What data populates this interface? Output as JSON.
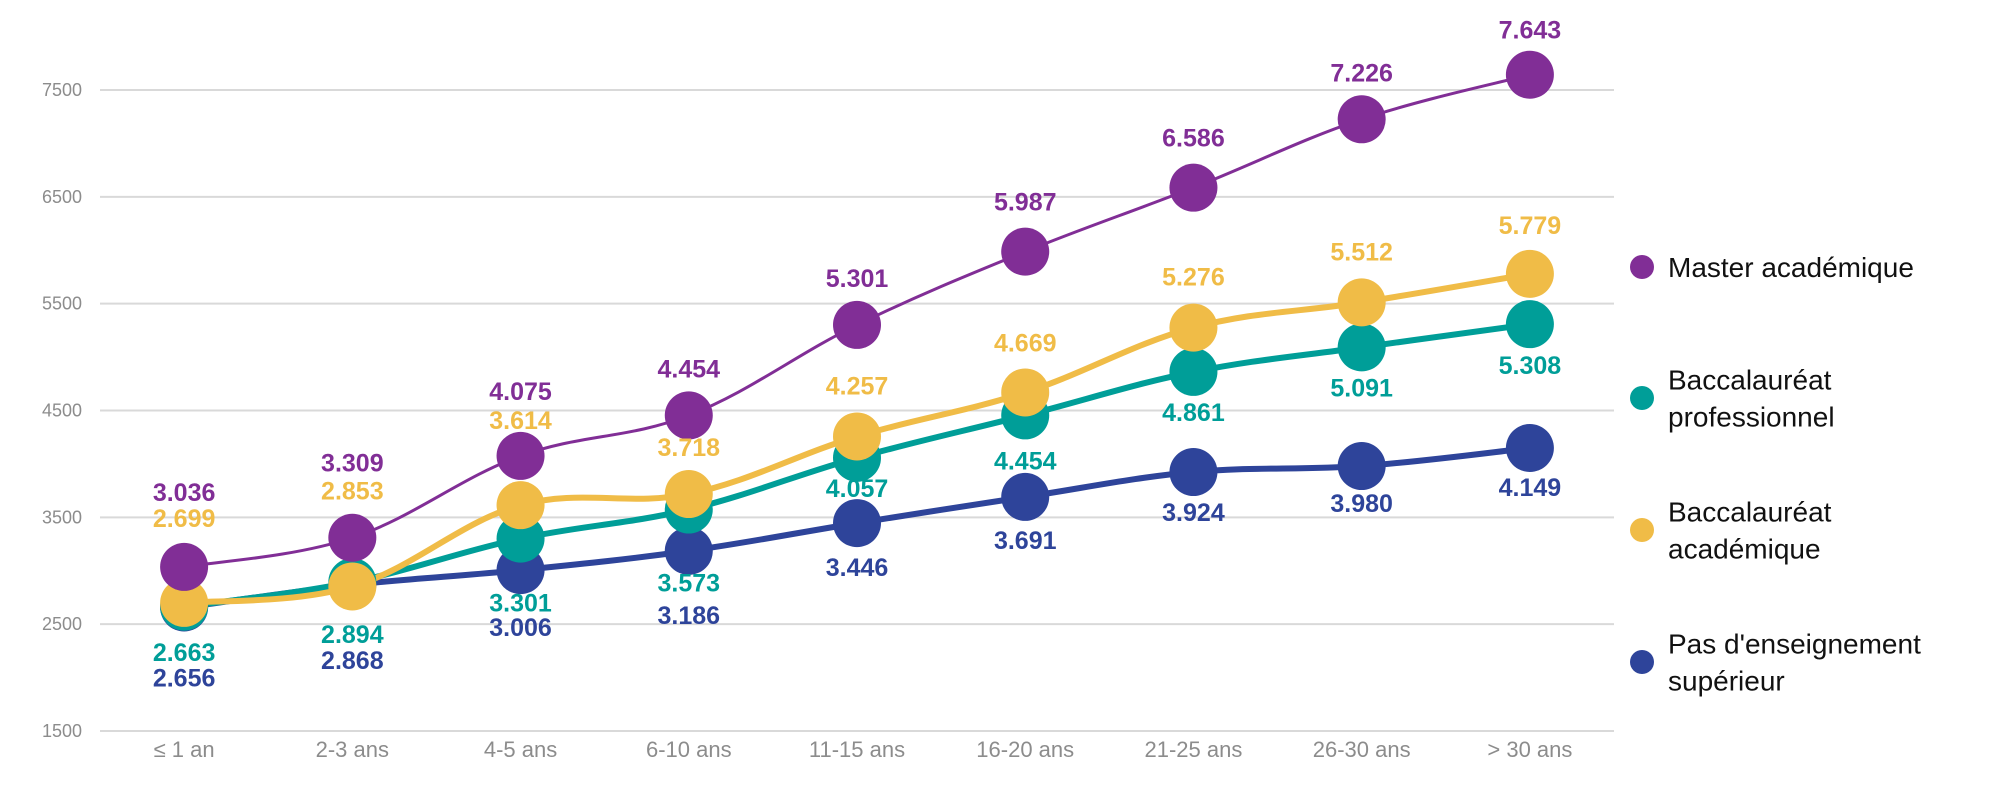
{
  "chart_data": {
    "type": "line",
    "title": "",
    "xlabel": "",
    "ylabel": "",
    "categories": [
      "≤ 1 an",
      "2-3 ans",
      "4-5 ans",
      "6-10 ans",
      "11-15 ans",
      "16-20 ans",
      "21-25 ans",
      "26-30 ans",
      "> 30 ans"
    ],
    "ylim": [
      1500,
      7500
    ],
    "yticks": [
      1500,
      2500,
      3500,
      4500,
      5500,
      6500,
      7500
    ],
    "ytick_labels": [
      "1500",
      "2500",
      "3500",
      "4500",
      "5500",
      "6500",
      "7500"
    ],
    "grid": true,
    "legend_position": "right",
    "series": [
      {
        "name": "Master académique",
        "legend_lines": [
          "Master académique"
        ],
        "color": "#812E96",
        "values": [
          3036,
          3309,
          4075,
          4454,
          5301,
          5987,
          6586,
          7226,
          7643
        ],
        "labels": [
          "3.036",
          "3.309",
          "4.075",
          "4.454",
          "5.301",
          "5.987",
          "6.586",
          "7.226",
          "7.643"
        ]
      },
      {
        "name": "Baccalauréat professionnel",
        "legend_lines": [
          "Baccalauréat",
          "professionnel"
        ],
        "color": "#009E98",
        "values": [
          2663,
          2894,
          3301,
          3573,
          4057,
          4454,
          4861,
          5091,
          5308
        ],
        "labels": [
          "2.663",
          "2.894",
          "3.301",
          "3.573",
          "4.057",
          "4.454",
          "4.861",
          "5.091",
          "5.308"
        ]
      },
      {
        "name": "Baccalauréat académique",
        "legend_lines": [
          "Baccalauréat",
          "académique"
        ],
        "color": "#F0BC47",
        "values": [
          2699,
          2853,
          3614,
          3718,
          4257,
          4669,
          5276,
          5512,
          5779
        ],
        "labels": [
          "2.699",
          "2.853",
          "3.614",
          "3.718",
          "4.257",
          "4.669",
          "5.276",
          "5.512",
          "5.779"
        ]
      },
      {
        "name": "Pas d'enseignement supérieur",
        "legend_lines": [
          "Pas d'enseignement",
          "supérieur"
        ],
        "color": "#2E449A",
        "values": [
          2656,
          2868,
          3006,
          3186,
          3446,
          3691,
          3924,
          3980,
          4149
        ],
        "labels": [
          "2.656",
          "2.868",
          "3.006",
          "3.186",
          "3.446",
          "3.691",
          "3.924",
          "3.980",
          "4.149"
        ]
      }
    ]
  }
}
